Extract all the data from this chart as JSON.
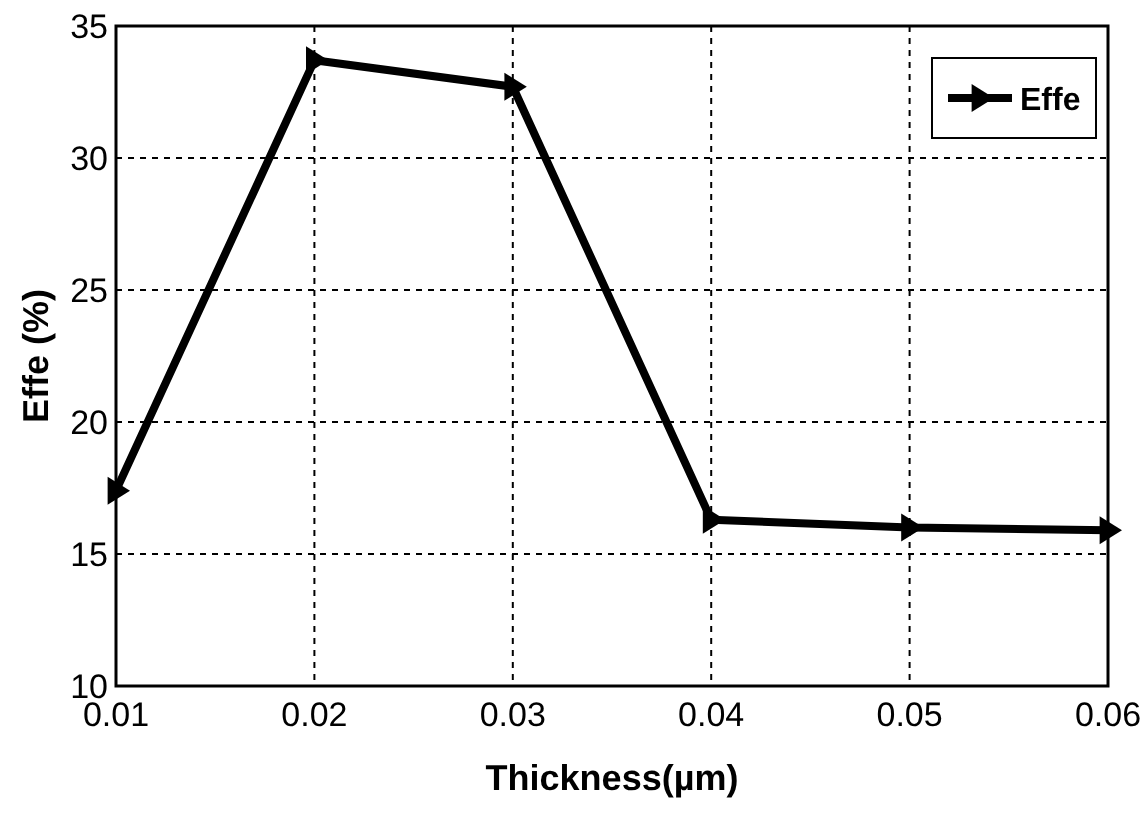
{
  "chart_data": {
    "type": "line",
    "xlabel": "Thickness(µm)",
    "ylabel": "Effe (%)",
    "x": [
      0.01,
      0.02,
      0.03,
      0.04,
      0.05,
      0.06
    ],
    "series": [
      {
        "name": "Effe",
        "color": "#000000",
        "values": [
          17.4,
          33.7,
          32.7,
          16.3,
          16.0,
          15.9
        ]
      }
    ],
    "xlim": [
      0.01,
      0.06
    ],
    "xticks": [
      0.01,
      0.02,
      0.03,
      0.04,
      0.05,
      0.06
    ],
    "ylim": [
      10,
      35
    ],
    "yticks": [
      10,
      15,
      20,
      25,
      30,
      35
    ],
    "grid": true,
    "legend": "top right",
    "marker": "triangle",
    "line_style": "solid"
  }
}
